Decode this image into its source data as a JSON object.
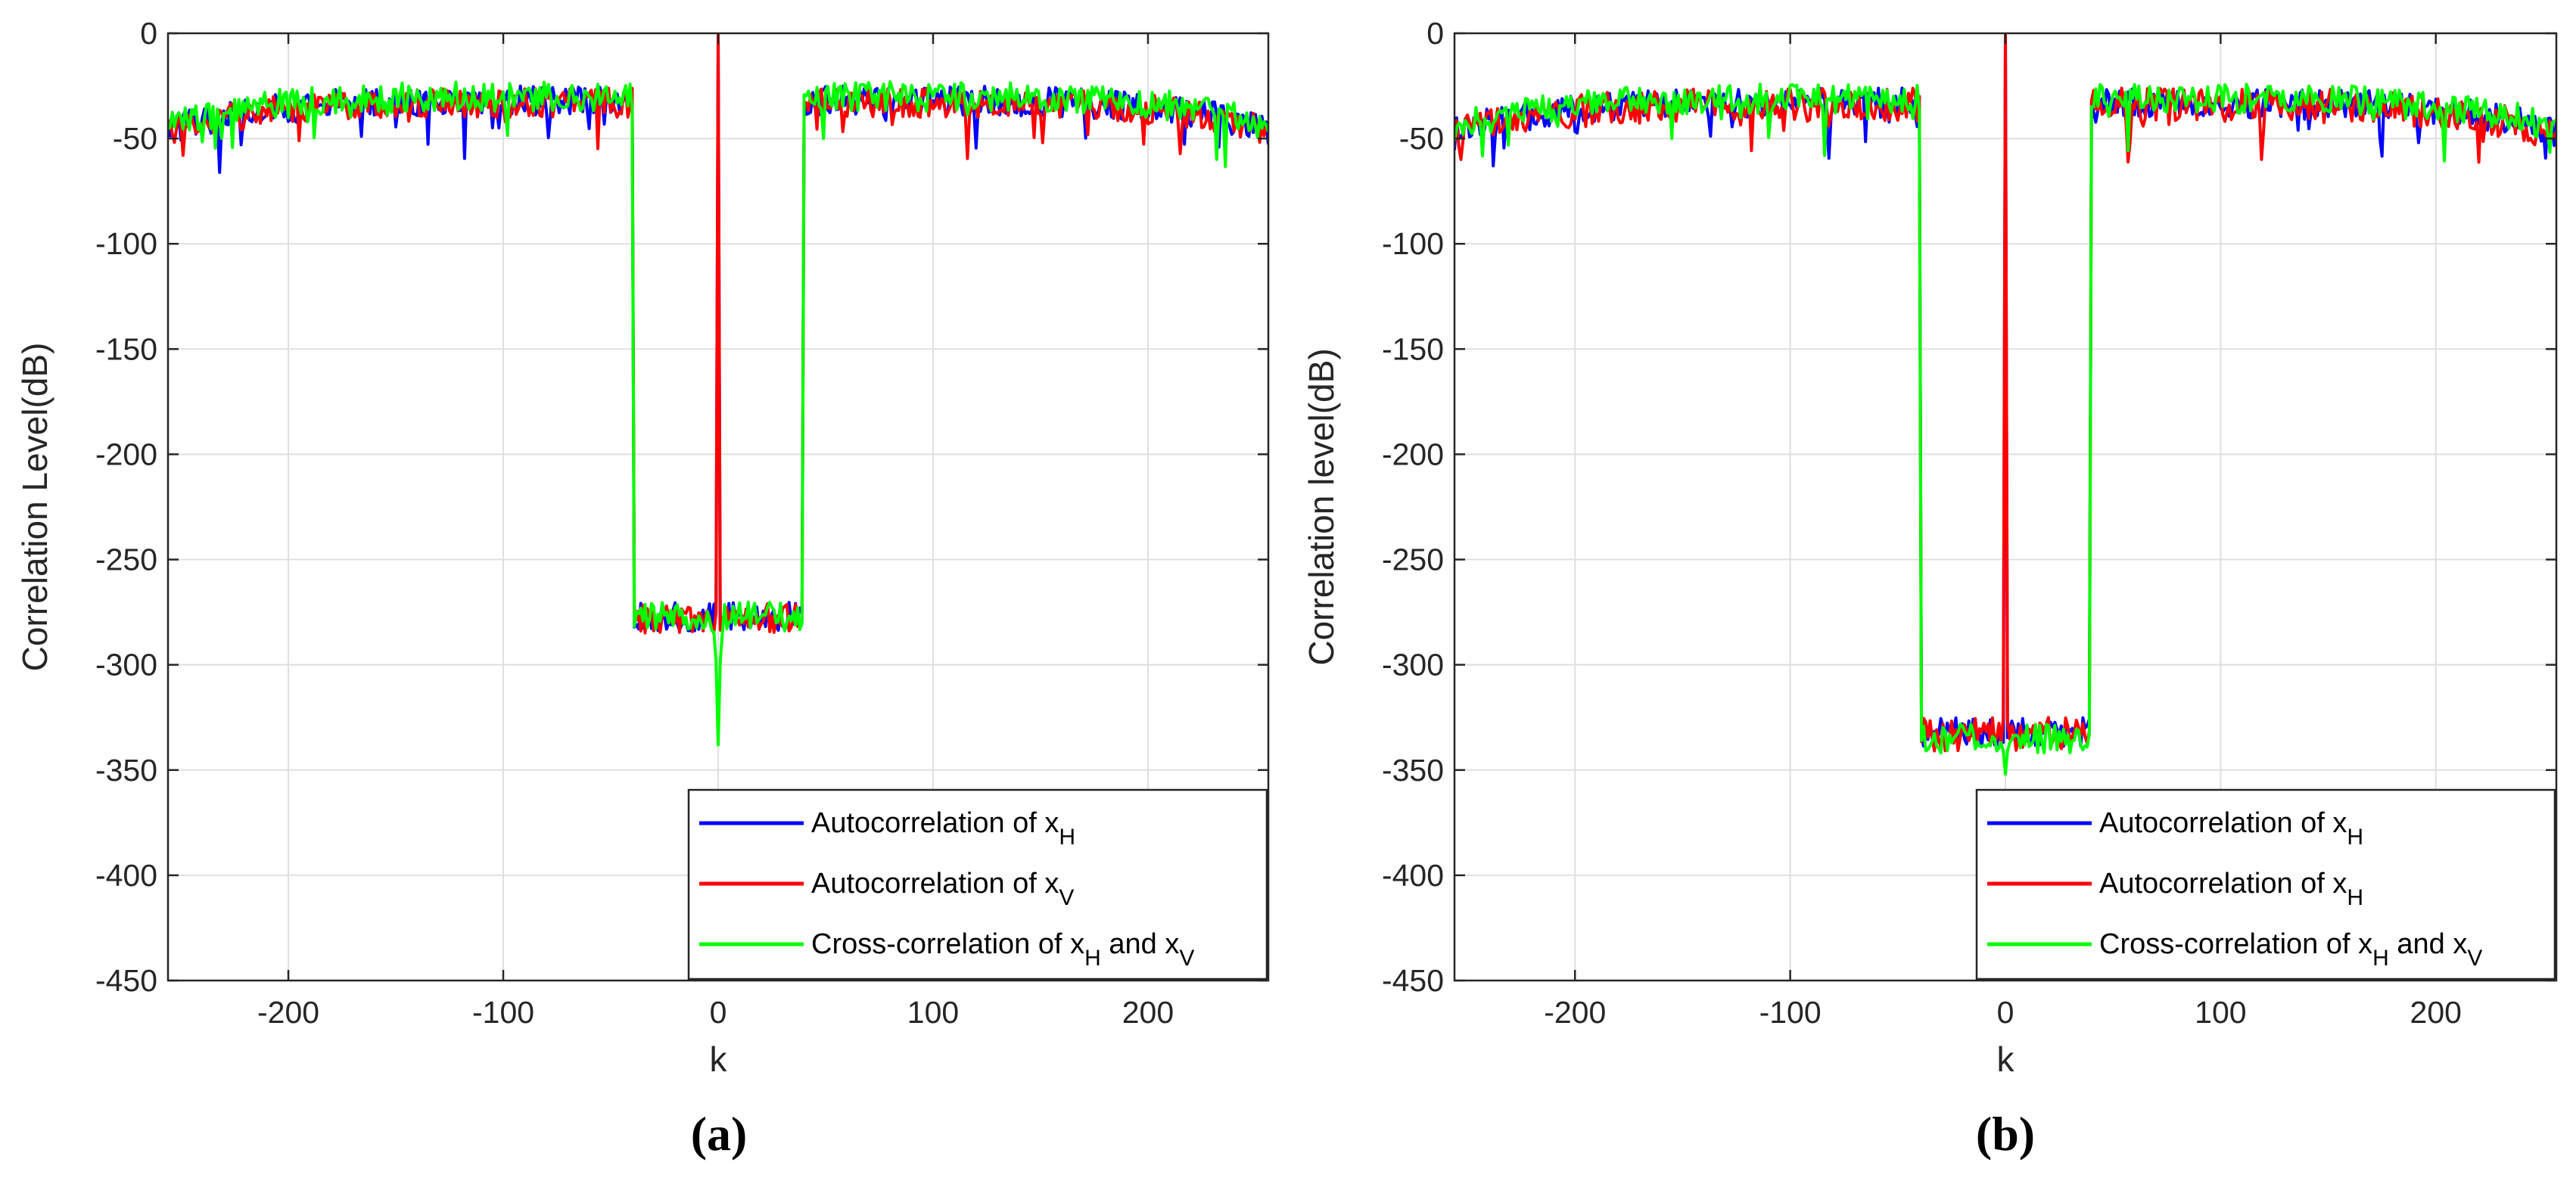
{
  "chart_data": [
    {
      "type": "line",
      "panel_label": "(a)",
      "xlabel": "k",
      "ylabel": "Correlation Level(dB)",
      "xlim": [
        -256,
        256
      ],
      "ylim": [
        -450,
        0
      ],
      "xticks": [
        -200,
        -100,
        0,
        100,
        200
      ],
      "yticks": [
        0,
        -50,
        -100,
        -150,
        -200,
        -250,
        -300,
        -350,
        -400,
        -450
      ],
      "grid": true,
      "legend_position": "bottom-right",
      "zone_k": 40,
      "series": [
        {
          "name": "Autocorrelation of x",
          "sub": "H",
          "color": "#0000ff",
          "outside_level": -32,
          "zone_level": -277,
          "peak": 0,
          "noise": 7
        },
        {
          "name": "Autocorrelation of x",
          "sub": "V",
          "color": "#ff0000",
          "outside_level": -33,
          "zone_level": -278,
          "peak": 0,
          "noise": 7
        },
        {
          "name": "Cross-correlation of x",
          "sub": "H",
          "mid": " and x",
          "sub2": "V",
          "color": "#00ff00",
          "outside_level": -30,
          "zone_level": -277,
          "peak": -338,
          "noise": 7
        }
      ]
    },
    {
      "type": "line",
      "panel_label": "(b)",
      "xlabel": "k",
      "ylabel": "Correlation level(dB)",
      "xlim": [
        -256,
        256
      ],
      "ylim": [
        -450,
        0
      ],
      "xticks": [
        -200,
        -100,
        0,
        100,
        200
      ],
      "yticks": [
        0,
        -50,
        -100,
        -150,
        -200,
        -250,
        -300,
        -350,
        -400,
        -450
      ],
      "grid": true,
      "legend_position": "bottom-right",
      "zone_k": 40,
      "series": [
        {
          "name": "Autocorrelation of x",
          "sub": "H",
          "color": "#0000ff",
          "outside_level": -33,
          "zone_level": -332,
          "peak": 0,
          "noise": 7
        },
        {
          "name": "Autocorrelation of x",
          "sub": "H",
          "color": "#ff0000",
          "outside_level": -34,
          "zone_level": -333,
          "peak": 0,
          "noise": 8
        },
        {
          "name": "Cross-correlation of x",
          "sub": "H",
          "mid": " and x",
          "sub2": "V",
          "color": "#00ff00",
          "outside_level": -31,
          "zone_level": -335,
          "peak": -352,
          "noise": 7
        }
      ]
    }
  ]
}
